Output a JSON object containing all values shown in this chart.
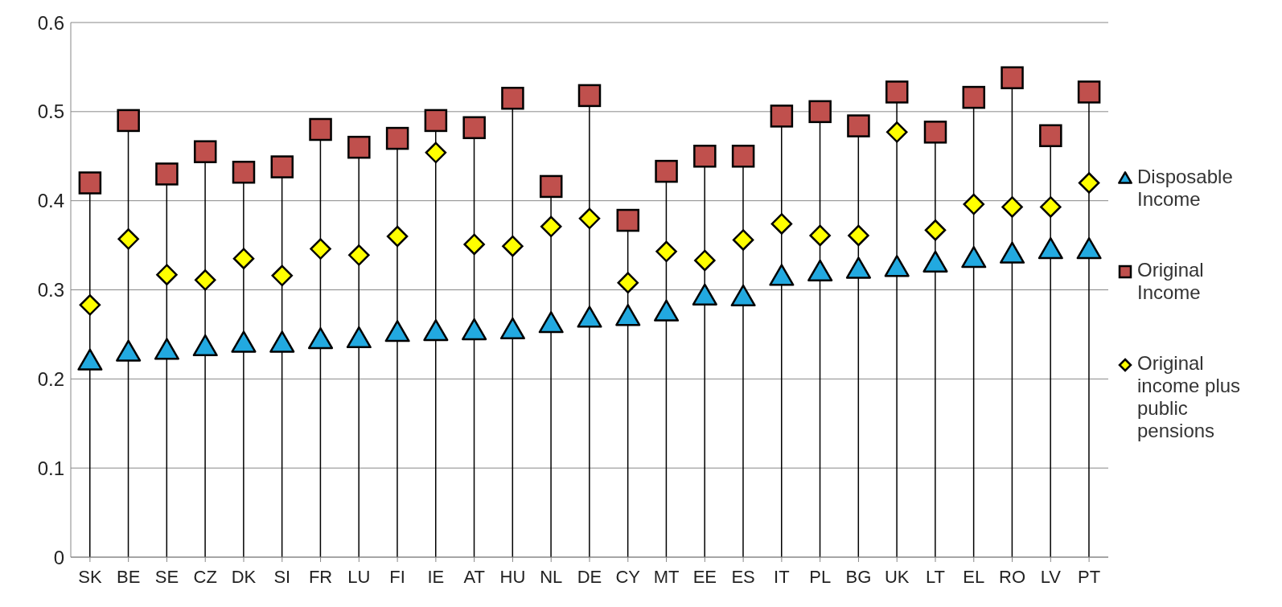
{
  "chart_data": {
    "type": "scatter",
    "categories": [
      "SK",
      "BE",
      "SE",
      "CZ",
      "DK",
      "SI",
      "FR",
      "LU",
      "FI",
      "IE",
      "AT",
      "HU",
      "NL",
      "DE",
      "CY",
      "MT",
      "EE",
      "ES",
      "IT",
      "PL",
      "BG",
      "UK",
      "LT",
      "EL",
      "RO",
      "LV",
      "PT"
    ],
    "series": [
      {
        "name": "Disposable Income",
        "marker": "triangle",
        "color": "#22a9e0",
        "values": [
          0.22,
          0.23,
          0.232,
          0.236,
          0.24,
          0.24,
          0.244,
          0.245,
          0.252,
          0.253,
          0.254,
          0.255,
          0.262,
          0.268,
          0.27,
          0.275,
          0.293,
          0.292,
          0.315,
          0.32,
          0.323,
          0.325,
          0.33,
          0.335,
          0.34,
          0.345,
          0.345
        ]
      },
      {
        "name": "Original Income",
        "type": "lollipop",
        "marker": "square",
        "color": "#c0504d",
        "values": [
          0.42,
          0.49,
          0.43,
          0.455,
          0.432,
          0.438,
          0.48,
          0.46,
          0.47,
          0.49,
          0.482,
          0.515,
          0.416,
          0.518,
          0.378,
          0.433,
          0.45,
          0.45,
          0.495,
          0.5,
          0.484,
          0.522,
          0.477,
          0.516,
          0.538,
          0.473,
          0.522
        ]
      },
      {
        "name": "Original income plus public pensions",
        "marker": "diamond",
        "color": "#ffff00",
        "values": [
          0.283,
          0.357,
          0.317,
          0.311,
          0.335,
          0.316,
          0.346,
          0.339,
          0.36,
          0.454,
          0.351,
          0.349,
          0.371,
          0.38,
          0.308,
          0.343,
          0.333,
          0.356,
          0.374,
          0.361,
          0.361,
          0.477,
          0.367,
          0.396,
          0.393,
          0.393,
          0.42
        ]
      }
    ],
    "ylim": [
      0,
      0.6
    ],
    "yticks": [
      0,
      0.1,
      0.2,
      0.3,
      0.4,
      0.5,
      0.6
    ],
    "grid": "y",
    "legend": "right"
  }
}
